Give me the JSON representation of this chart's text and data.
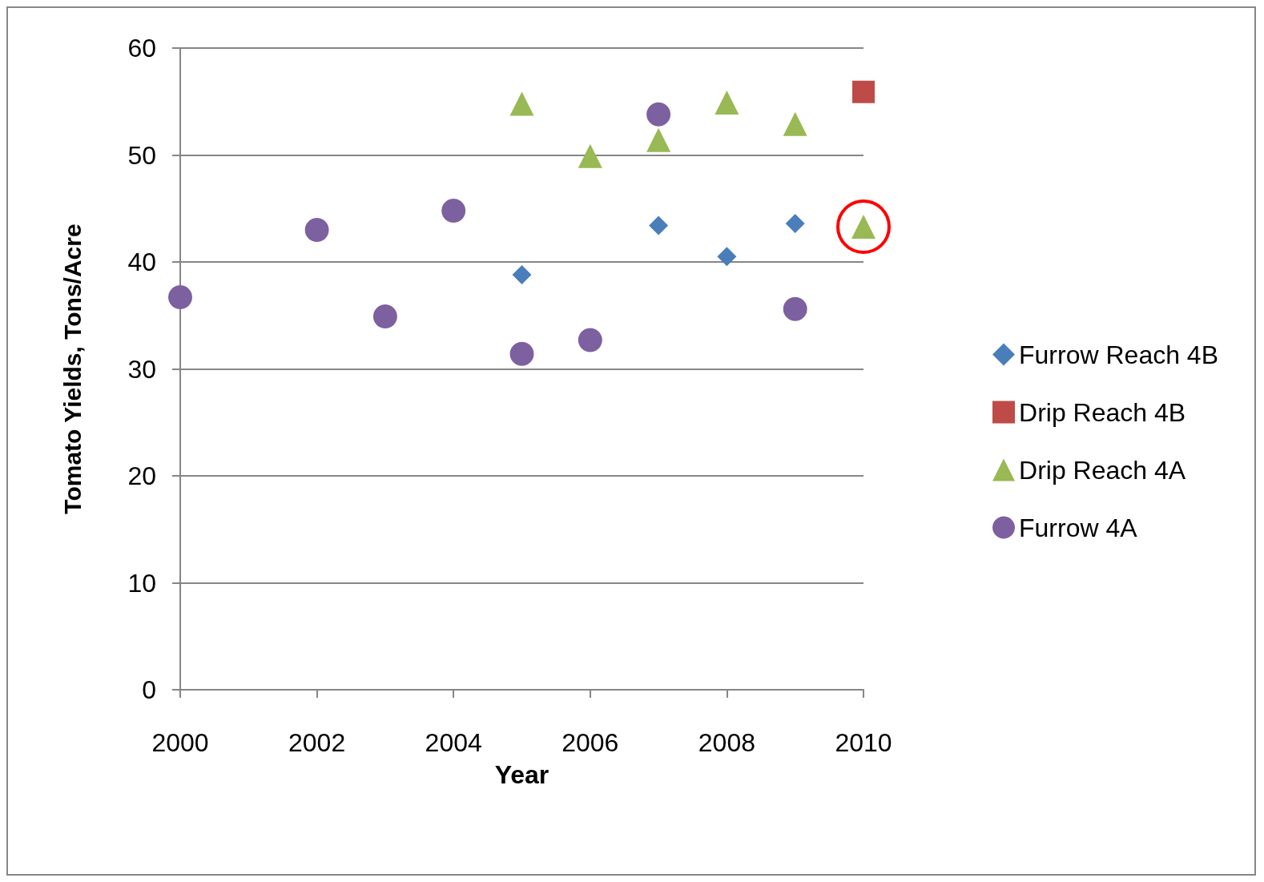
{
  "chart_data": {
    "type": "scatter",
    "xlabel": "Year",
    "ylabel": "Tomato Yields, Tons/Acre",
    "xlim": [
      2000,
      2010
    ],
    "xticks": [
      2000,
      2002,
      2004,
      2006,
      2008,
      2010
    ],
    "ylim": [
      0,
      60
    ],
    "yticks": [
      0,
      10,
      20,
      30,
      40,
      50,
      60
    ],
    "grid": "y",
    "legend": "right",
    "series": [
      {
        "name": "Furrow Reach 4B",
        "color": "#4a7ebb",
        "marker": "diamond",
        "x": [
          2005,
          2007,
          2008,
          2009
        ],
        "values": [
          38.8,
          43.4,
          40.5,
          43.6
        ]
      },
      {
        "name": "Drip Reach 4B",
        "color": "#be4b48",
        "marker": "square",
        "x": [
          2010
        ],
        "values": [
          55.9
        ]
      },
      {
        "name": "Drip Reach 4A",
        "color": "#98b954",
        "marker": "triangle",
        "x": [
          2005,
          2006,
          2007,
          2008,
          2009,
          2010
        ],
        "values": [
          54.8,
          49.9,
          51.4,
          54.9,
          52.9,
          43.3
        ]
      },
      {
        "name": "Furrow 4A",
        "color": "#7d60a0",
        "marker": "circle",
        "x": [
          2000,
          2002,
          2003,
          2004,
          2005,
          2006,
          2007,
          2009
        ],
        "values": [
          36.7,
          43,
          34.9,
          44.8,
          31.4,
          32.7,
          53.8,
          35.6
        ]
      }
    ]
  }
}
